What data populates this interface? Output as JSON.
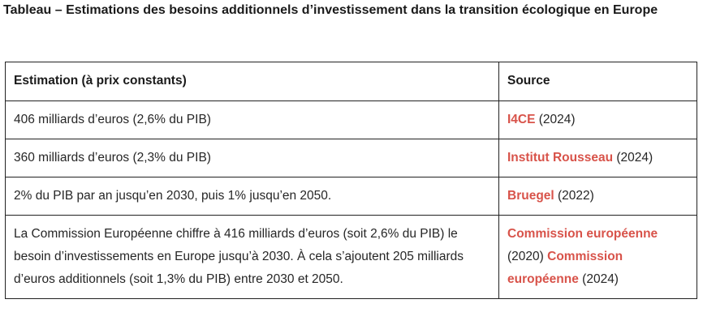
{
  "title": "Tableau – Estimations des besoins additionnels d’investissement dans la transition écologique en Europe",
  "colors": {
    "link": "#d8534a",
    "text": "#262626",
    "border": "#222222"
  },
  "table": {
    "headers": [
      "Estimation (à prix constants)",
      "Source"
    ],
    "rows": [
      {
        "estimate": "406 milliards d’euros (2,6% du PIB)",
        "source_link": "I4CE",
        "source_year": " (2024)"
      },
      {
        "estimate": "360 milliards d’euros (2,3% du PIB)",
        "source_link": "Institut Rousseau",
        "source_year": " (2024)"
      },
      {
        "estimate": "2% du PIB par an jusqu’en 2030, puis 1% jusqu’en 2050.",
        "source_link": "Bruegel",
        "source_year": " (2022)"
      },
      {
        "estimate": "La Commission Européenne chiffre à 416 milliards d’euros (soit 2,6% du PIB) le besoin d’investissements en Europe jusqu’à 2030. À cela s’ajoutent 205 milliards d’euros additionnels (soit 1,3% du PIB) entre 2030 et 2050.",
        "source_link": "Commission européenne",
        "source_year": " (2020) ",
        "source_link_2": "Commission européenne",
        "source_year_2": " (2024)"
      }
    ]
  }
}
